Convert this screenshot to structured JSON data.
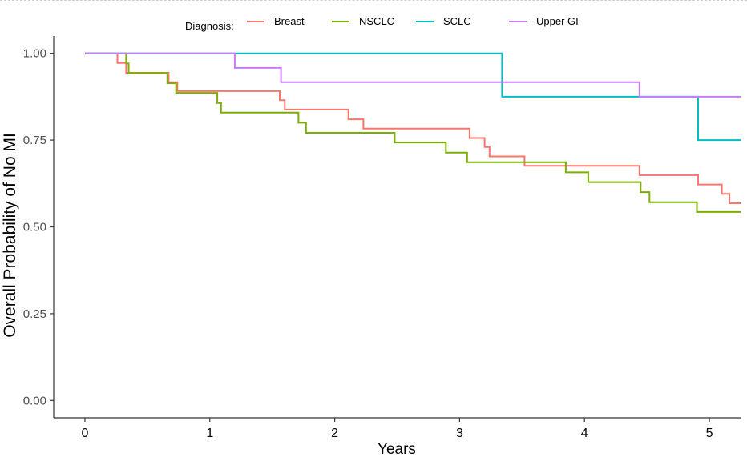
{
  "chart_data": {
    "type": "line",
    "step": true,
    "title": "",
    "xlabel": "Years",
    "ylabel": "Overall Probability of No MI",
    "xlim": [
      -0.25,
      5.25
    ],
    "ylim": [
      -0.05,
      1.05
    ],
    "x_ticks": [
      0,
      1,
      2,
      3,
      4,
      5
    ],
    "x_tick_labels": [
      "0",
      "1",
      "2",
      "3",
      "4",
      "5"
    ],
    "y_ticks": [
      0,
      0.25,
      0.5,
      0.75,
      1
    ],
    "y_tick_labels": [
      "0.00",
      "0.25",
      "0.50",
      "0.75",
      "1.00"
    ],
    "grid": false,
    "legend": {
      "title": "Diagnosis:",
      "position": "top"
    },
    "series": [
      {
        "name": "Breast",
        "color": "#F8766D",
        "x": [
          0,
          0.26,
          0.33,
          0.67,
          0.74,
          1.56,
          1.58,
          1.6,
          2.11,
          2.23,
          3.08,
          3.2,
          3.24,
          3.3,
          3.52,
          4.44,
          4.91,
          5.1,
          5.16,
          5.25
        ],
        "y": [
          1.0,
          0.972,
          0.944,
          0.917,
          0.891,
          0.865,
          0.865,
          0.838,
          0.81,
          0.783,
          0.756,
          0.73,
          0.703,
          0.703,
          0.676,
          0.649,
          0.622,
          0.595,
          0.568,
          0.568
        ]
      },
      {
        "name": "NSCLC",
        "color": "#7CAE00",
        "x": [
          0,
          0.33,
          0.35,
          0.66,
          0.73,
          1.06,
          1.09,
          1.71,
          1.77,
          2.48,
          2.89,
          3.06,
          3.85,
          4.03,
          4.45,
          4.52,
          4.9,
          5.25
        ],
        "y": [
          1.0,
          0.971,
          0.943,
          0.914,
          0.886,
          0.857,
          0.829,
          0.8,
          0.771,
          0.743,
          0.714,
          0.686,
          0.657,
          0.629,
          0.6,
          0.571,
          0.543,
          0.543
        ]
      },
      {
        "name": "SCLC",
        "color": "#00BFC4",
        "x": [
          0,
          3.34,
          4.91,
          5.25
        ],
        "y": [
          1.0,
          0.875,
          0.75,
          0.75
        ]
      },
      {
        "name": "Upper GI",
        "color": "#C77CFF",
        "x": [
          0,
          1.2,
          1.57,
          4.44,
          5.25
        ],
        "y": [
          1.0,
          0.958,
          0.917,
          0.875,
          0.875
        ]
      }
    ]
  }
}
